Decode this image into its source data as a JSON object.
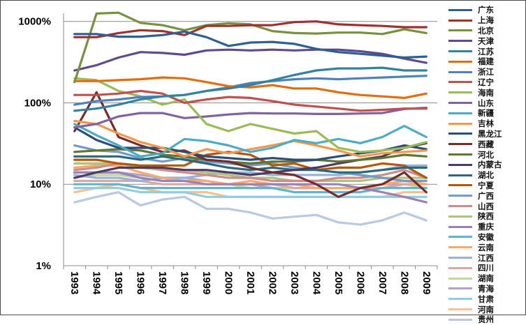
{
  "chart_data": {
    "type": "line",
    "title": "",
    "xlabel": "",
    "ylabel": "",
    "yscale": "log",
    "ylim": [
      1,
      1000
    ],
    "yticks": [
      1,
      10,
      100,
      1000
    ],
    "ytick_labels": [
      "1%",
      "10%",
      "100%",
      "1000%"
    ],
    "grid": true,
    "legend_position": "right",
    "x": [
      "1993",
      "1994",
      "1995",
      "1996",
      "1997",
      "1998",
      "1999",
      "2000",
      "2001",
      "2002",
      "2003",
      "2004",
      "2005",
      "2006",
      "2007",
      "2008",
      "2009"
    ],
    "series": [
      {
        "name": "广东",
        "color": "#2e5f93",
        "values": [
          700,
          700,
          650,
          650,
          680,
          750,
          640,
          500,
          550,
          560,
          530,
          460,
          420,
          400,
          380,
          360,
          370
        ]
      },
      {
        "name": "上海",
        "color": "#a0302e",
        "values": [
          640,
          640,
          720,
          780,
          760,
          680,
          880,
          880,
          900,
          900,
          980,
          1000,
          920,
          900,
          880,
          850,
          850
        ]
      },
      {
        "name": "北京",
        "color": "#76923c",
        "values": [
          180,
          1250,
          1280,
          960,
          900,
          780,
          900,
          950,
          920,
          760,
          720,
          710,
          730,
          730,
          700,
          800,
          720
        ]
      },
      {
        "name": "天津",
        "color": "#5f4b8b",
        "values": [
          250,
          290,
          360,
          420,
          410,
          390,
          440,
          450,
          440,
          450,
          440,
          450,
          450,
          430,
          400,
          350,
          310
        ]
      },
      {
        "name": "江苏",
        "color": "#31849b",
        "values": [
          80,
          85,
          95,
          110,
          120,
          125,
          140,
          150,
          165,
          190,
          220,
          250,
          265,
          265,
          270,
          250,
          250
        ]
      },
      {
        "name": "福建",
        "color": "#e46c0a",
        "values": [
          185,
          185,
          190,
          195,
          205,
          200,
          180,
          160,
          155,
          165,
          150,
          150,
          135,
          125,
          120,
          115,
          130
        ]
      },
      {
        "name": "浙江",
        "color": "#4f81bd",
        "values": [
          95,
          105,
          110,
          118,
          120,
          125,
          140,
          155,
          175,
          185,
          195,
          200,
          195,
          200,
          205,
          210,
          215
        ]
      },
      {
        "name": "辽宁",
        "color": "#c0504d",
        "values": [
          125,
          125,
          130,
          140,
          130,
          100,
          110,
          118,
          115,
          105,
          95,
          90,
          85,
          80,
          82,
          85,
          85
        ]
      },
      {
        "name": "海南",
        "color": "#9bbb59",
        "values": [
          200,
          190,
          140,
          120,
          95,
          110,
          55,
          45,
          55,
          48,
          42,
          45,
          28,
          25,
          26,
          28,
          33
        ]
      },
      {
        "name": "山东",
        "color": "#8064a2",
        "values": [
          50,
          55,
          68,
          75,
          75,
          65,
          68,
          72,
          75,
          74,
          74,
          73,
          73,
          74,
          75,
          84,
          87
        ]
      },
      {
        "name": "新疆",
        "color": "#4bacc6",
        "values": [
          55,
          40,
          30,
          22,
          24,
          36,
          34,
          30,
          25,
          28,
          35,
          32,
          36,
          32,
          38,
          52,
          38
        ]
      },
      {
        "name": "吉林",
        "color": "#f79646",
        "values": [
          60,
          55,
          42,
          33,
          28,
          22,
          27,
          24,
          27,
          30,
          34,
          30,
          26,
          22,
          24,
          25,
          26
        ]
      },
      {
        "name": "黑龙江",
        "color": "#2c4d75",
        "values": [
          50,
          35,
          28,
          28,
          28,
          25,
          22,
          21,
          20,
          21,
          20,
          20,
          22,
          24,
          26,
          30,
          27
        ]
      },
      {
        "name": "西藏",
        "color": "#772c2a",
        "values": [
          45,
          135,
          38,
          30,
          25,
          26,
          20,
          19,
          16,
          14,
          13,
          10,
          7,
          9,
          10,
          14,
          8
        ]
      },
      {
        "name": "河北",
        "color": "#5f7530",
        "values": [
          25,
          26,
          27,
          26,
          23,
          22,
          20,
          19,
          18,
          19,
          19,
          20,
          19,
          20,
          21,
          23,
          22
        ]
      },
      {
        "name": "内蒙古",
        "color": "#4d3b62",
        "values": [
          12,
          14,
          16,
          16,
          16,
          15,
          15,
          14,
          13,
          14,
          15,
          16,
          18,
          20,
          22,
          28,
          32
        ]
      },
      {
        "name": "湖北",
        "color": "#276a7c",
        "values": [
          22,
          22,
          22,
          20,
          22,
          20,
          18,
          16,
          15,
          16,
          15,
          15,
          14,
          14,
          15,
          16,
          16
        ]
      },
      {
        "name": "宁夏",
        "color": "#b65708",
        "values": [
          20,
          20,
          18,
          17,
          17,
          17,
          23,
          25,
          23,
          17,
          18,
          15,
          16,
          16,
          18,
          17,
          12
        ]
      },
      {
        "name": "广西",
        "color": "#729aca",
        "values": [
          30,
          26,
          25,
          21,
          19,
          21,
          19,
          18,
          17,
          18,
          16,
          15,
          14,
          13,
          12,
          11,
          11
        ]
      },
      {
        "name": "山西",
        "color": "#ce8b8a",
        "values": [
          15,
          16,
          18,
          17,
          15,
          14,
          13,
          12,
          12,
          11,
          11,
          11,
          12,
          12,
          13,
          15,
          12
        ]
      },
      {
        "name": "陕西",
        "color": "#a9c47f",
        "values": [
          18,
          18,
          18,
          16,
          15,
          15,
          14,
          13,
          12,
          12,
          11,
          11,
          11,
          11,
          12,
          12,
          12
        ]
      },
      {
        "name": "重庆",
        "color": "#9983b5",
        "values": [
          14,
          14,
          14,
          12,
          11,
          11,
          10,
          10,
          10,
          10,
          10,
          10,
          10,
          9,
          8,
          7,
          6
        ]
      },
      {
        "name": "安徽",
        "color": "#60b5cc",
        "values": [
          10,
          10,
          10,
          9,
          9,
          9,
          9,
          9,
          9,
          9,
          8,
          8,
          8,
          8,
          9,
          9,
          9
        ]
      },
      {
        "name": "云南",
        "color": "#f9ab6b",
        "values": [
          16,
          17,
          17,
          14,
          12,
          11,
          11,
          10,
          11,
          10,
          10,
          9,
          9,
          9,
          10,
          11,
          10
        ]
      },
      {
        "name": "江西",
        "color": "#98b3d9",
        "values": [
          13,
          12,
          12,
          11,
          12,
          12,
          13,
          14,
          14,
          13,
          13,
          13,
          13,
          14,
          15,
          17,
          17
        ]
      },
      {
        "name": "四川",
        "color": "#d9a9a8",
        "values": [
          11,
          11,
          11,
          11,
          10,
          10,
          10,
          10,
          10,
          10,
          9,
          9,
          9,
          9,
          9,
          10,
          10
        ]
      },
      {
        "name": "湖南",
        "color": "#c3d69b",
        "values": [
          12,
          13,
          13,
          12,
          11,
          11,
          10,
          10,
          9,
          9,
          9,
          9,
          9,
          9,
          9,
          10,
          9
        ]
      },
      {
        "name": "青海",
        "color": "#b3a2c7",
        "values": [
          14,
          14,
          14,
          13,
          12,
          12,
          11,
          10,
          10,
          9,
          9,
          9,
          9,
          9,
          10,
          10,
          10
        ]
      },
      {
        "name": "甘肃",
        "color": "#93cddd",
        "values": [
          9,
          9,
          9,
          8,
          8,
          8,
          7,
          7,
          7,
          7,
          7,
          7,
          7,
          7,
          7,
          7,
          7
        ]
      },
      {
        "name": "河南",
        "color": "#fac090",
        "values": [
          8,
          9,
          10,
          9,
          8,
          8,
          8,
          7,
          7,
          7,
          7,
          7,
          7,
          7,
          7,
          8,
          8
        ]
      },
      {
        "name": "贵州",
        "color": "#b9c9e3",
        "values": [
          6,
          7,
          8,
          5.5,
          6.5,
          7,
          5,
          5,
          4.5,
          3.8,
          4,
          4.2,
          3.4,
          3.2,
          3.6,
          4.5,
          3.6
        ]
      }
    ]
  }
}
